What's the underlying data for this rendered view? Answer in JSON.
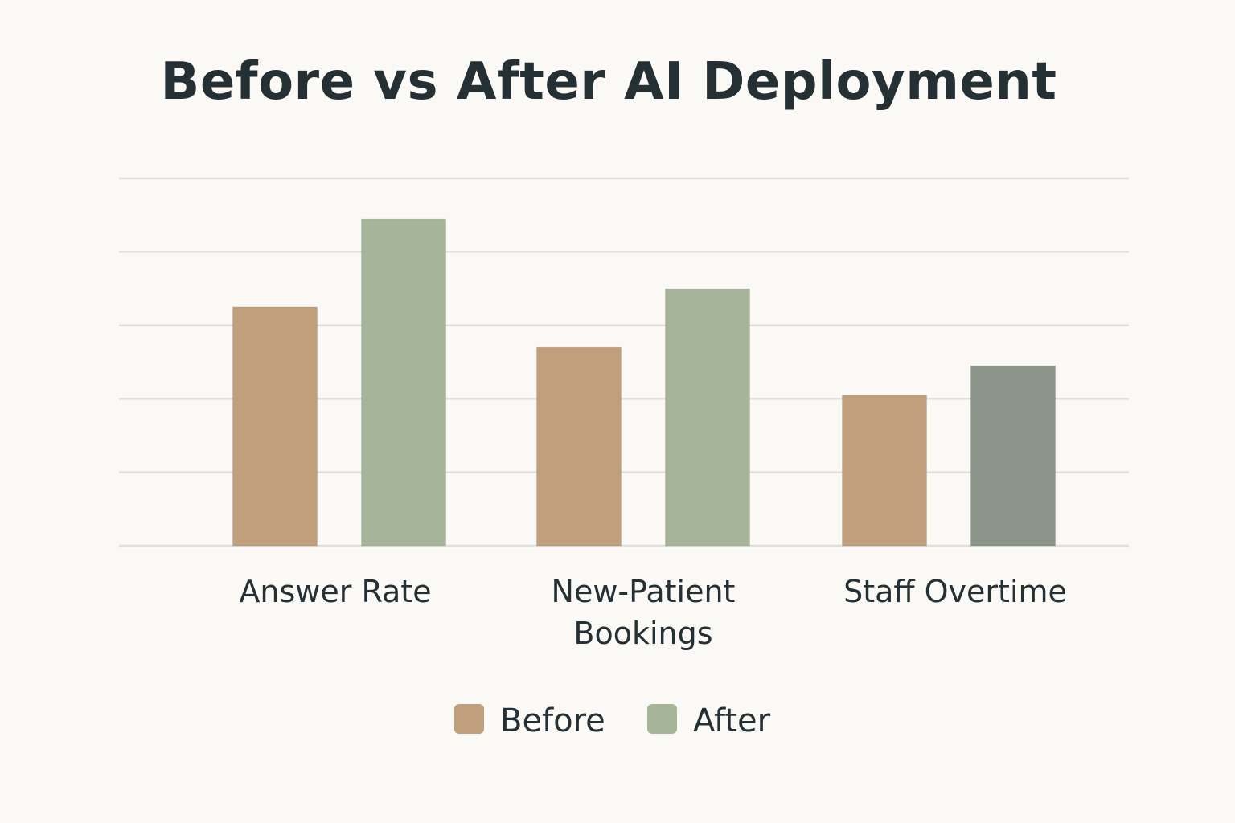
{
  "chart_data": {
    "type": "bar",
    "title": "Before vs After AI Deployment",
    "categories": [
      [
        "Answer Rate"
      ],
      [
        "New-Patient",
        "Bookings"
      ],
      [
        "Staff Overtime"
      ]
    ],
    "series": [
      {
        "name": "Before",
        "color": "#bf9f7c",
        "values": [
          3.25,
          2.7,
          2.05
        ]
      },
      {
        "name": "After",
        "color": "#a6b59a",
        "values": [
          4.45,
          3.5,
          2.45
        ]
      }
    ],
    "bar_color_overrides": [
      {
        "series": 1,
        "category": 2,
        "color": "#8a9489"
      }
    ],
    "ylim": [
      0,
      5
    ],
    "gridlines": 5,
    "grid": true,
    "legend": "bottom-center",
    "xlabel": "",
    "ylabel": ""
  }
}
